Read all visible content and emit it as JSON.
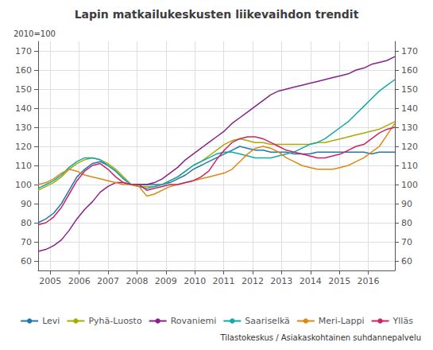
{
  "chart_data": {
    "type": "line",
    "title": "Lapin matkailukeskusten liikevaihdon trendit",
    "subtitle": "2010=100",
    "source": "Tilastokeskus / Asiakaskohtainen suhdannepalvelu",
    "x": [
      2004.58,
      2004.848261,
      2005.116522,
      2005.384783,
      2005.653043,
      2005.921304,
      2006.189565,
      2006.457826,
      2006.726087,
      2006.994348,
      2007.262609,
      2007.53087,
      2007.79913,
      2008.067391,
      2008.335652,
      2008.603913,
      2008.872174,
      2009.140435,
      2009.408696,
      2009.676957,
      2009.945217,
      2010.213478,
      2010.481739,
      2010.75,
      2011.018261,
      2011.286522,
      2011.554783,
      2011.823043,
      2012.091304,
      2012.359565,
      2012.627826,
      2012.896087,
      2013.164348,
      2013.432609,
      2013.70087,
      2013.96913,
      2014.237391,
      2014.505652,
      2014.773913,
      2015.042174,
      2015.310435,
      2015.578696,
      2015.846957,
      2016.115217,
      2016.383478,
      2016.651739,
      2016.92
    ],
    "xlim": [
      2004.58,
      2016.92
    ],
    "xticks": [
      2005,
      2006,
      2007,
      2008,
      2009,
      2010,
      2011,
      2012,
      2013,
      2014,
      2015,
      2016
    ],
    "ylim": [
      55,
      175
    ],
    "yticks": [
      60,
      70,
      80,
      90,
      100,
      110,
      120,
      130,
      140,
      150,
      160,
      170
    ],
    "y2lim": [
      55,
      175
    ],
    "y2ticks": [
      60,
      70,
      80,
      90,
      100,
      110,
      120,
      130,
      140,
      150,
      160,
      170
    ],
    "grid": true,
    "legend": "bottom",
    "series": [
      {
        "name": "Levi",
        "color": "#2277aa",
        "values": [
          80,
          82,
          85,
          90,
          97,
          104,
          108,
          111,
          112,
          110,
          107,
          103,
          100,
          100,
          100,
          100,
          100,
          101,
          103,
          105,
          108,
          110,
          112,
          114,
          116,
          118,
          120,
          119,
          118,
          118,
          117,
          117,
          117,
          116,
          116,
          116,
          117,
          117,
          117,
          117,
          117,
          117,
          117,
          116,
          117,
          117,
          117
        ]
      },
      {
        "name": "Pyhä-Luosto",
        "color": "#aaaa00",
        "values": [
          97,
          99,
          101,
          104,
          108,
          111,
          113,
          114,
          113,
          111,
          108,
          104,
          100,
          99,
          99,
          99,
          100,
          102,
          104,
          107,
          110,
          112,
          115,
          118,
          121,
          123,
          124,
          123,
          122,
          122,
          121,
          121,
          121,
          121,
          121,
          121,
          122,
          122,
          123,
          124,
          125,
          126,
          127,
          128,
          129,
          131,
          133
        ]
      },
      {
        "name": "Rovaniemi",
        "color": "#882288",
        "values": [
          65,
          66,
          68,
          71,
          76,
          82,
          87,
          91,
          96,
          99,
          101,
          101,
          100,
          100,
          100,
          101,
          103,
          106,
          109,
          113,
          116,
          119,
          122,
          125,
          128,
          132,
          135,
          138,
          141,
          144,
          147,
          149,
          150,
          151,
          152,
          153,
          154,
          155,
          156,
          157,
          158,
          160,
          161,
          163,
          164,
          165,
          167
        ]
      },
      {
        "name": "Saariselkä",
        "color": "#11aaaa",
        "values": [
          98,
          100,
          102,
          105,
          109,
          112,
          114,
          114,
          113,
          110,
          107,
          103,
          100,
          99,
          98,
          99,
          100,
          102,
          104,
          107,
          110,
          112,
          114,
          116,
          117,
          117,
          116,
          115,
          114,
          114,
          114,
          115,
          116,
          117,
          119,
          121,
          122,
          124,
          127,
          130,
          133,
          137,
          141,
          145,
          149,
          152,
          155
        ]
      },
      {
        "name": "Meri-Lappi",
        "color": "#dd8811",
        "values": [
          100,
          101,
          103,
          106,
          108,
          107,
          105,
          104,
          103,
          102,
          101,
          100,
          100,
          99,
          94,
          95,
          97,
          99,
          100,
          101,
          102,
          103,
          104,
          105,
          106,
          108,
          112,
          116,
          119,
          120,
          119,
          117,
          114,
          112,
          110,
          109,
          108,
          108,
          108,
          109,
          110,
          112,
          114,
          117,
          120,
          126,
          132
        ]
      },
      {
        "name": "Ylläs",
        "color": "#cc2266",
        "values": [
          79,
          80,
          83,
          88,
          95,
          102,
          107,
          110,
          111,
          108,
          104,
          101,
          100,
          100,
          97,
          98,
          99,
          100,
          100,
          101,
          102,
          104,
          107,
          113,
          118,
          122,
          124,
          125,
          125,
          124,
          122,
          120,
          118,
          117,
          116,
          115,
          114,
          114,
          115,
          116,
          118,
          120,
          121,
          124,
          127,
          129,
          130
        ]
      }
    ]
  }
}
